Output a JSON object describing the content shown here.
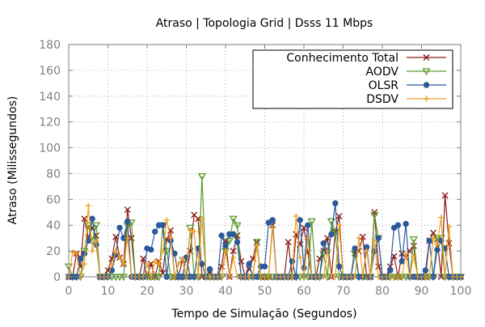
{
  "chart_data": {
    "type": "line",
    "title": "Atraso | Topologia Grid | Dsss 11 Mbps",
    "xlabel": "Tempo de Simulação (Segundos)",
    "ylabel": "Atraso (Milissegundos)",
    "xlim": [
      0,
      100
    ],
    "ylim": [
      0,
      180
    ],
    "x_ticks": [
      0,
      10,
      20,
      30,
      40,
      50,
      60,
      70,
      80,
      90,
      100
    ],
    "y_ticks": [
      0,
      20,
      40,
      60,
      80,
      100,
      120,
      140,
      160,
      180
    ],
    "grid": true,
    "legend_position": "top-right",
    "series": [
      {
        "name": "Conhecimento Total",
        "color": "#8b1a1a",
        "marker": "x",
        "x": [
          0,
          1,
          2,
          3,
          4,
          5,
          6,
          7,
          8,
          9,
          10,
          11,
          12,
          13,
          14,
          15,
          16,
          17,
          18,
          19,
          20,
          21,
          22,
          23,
          24,
          25,
          26,
          27,
          28,
          29,
          30,
          31,
          32,
          33,
          34,
          35,
          36,
          37,
          38,
          39,
          40,
          41,
          42,
          43,
          44,
          45,
          46,
          47,
          48,
          49,
          50,
          51,
          52,
          53,
          54,
          55,
          56,
          57,
          58,
          59,
          60,
          61,
          62,
          63,
          64,
          65,
          66,
          67,
          68,
          69,
          70,
          71,
          72,
          73,
          74,
          75,
          76,
          77,
          78,
          79,
          80,
          81,
          82,
          83,
          84,
          85,
          86,
          87,
          88,
          89,
          90,
          91,
          92,
          93,
          94,
          95,
          96,
          97,
          98,
          99,
          100
        ],
        "y": [
          0,
          0,
          18,
          8,
          45,
          30,
          38,
          32,
          0,
          0,
          5,
          14,
          31,
          15,
          10,
          52,
          30,
          0,
          0,
          14,
          0,
          10,
          0,
          12,
          3,
          29,
          36,
          0,
          0,
          13,
          0,
          20,
          48,
          45,
          0,
          0,
          3,
          0,
          0,
          8,
          28,
          0,
          20,
          32,
          12,
          0,
          6,
          14,
          27,
          0,
          0,
          0,
          40,
          0,
          0,
          0,
          27,
          0,
          33,
          25,
          38,
          19,
          0,
          0,
          14,
          20,
          30,
          0,
          35,
          47,
          0,
          0,
          0,
          18,
          20,
          31,
          0,
          0,
          50,
          8,
          0,
          0,
          8,
          16,
          0,
          18,
          15,
          20,
          24,
          0,
          0,
          0,
          28,
          34,
          29,
          0,
          63,
          26,
          0,
          0,
          0
        ]
      },
      {
        "name": "AODV",
        "color": "#5a9a2a",
        "marker": "triangle-down",
        "x": [
          0,
          1,
          2,
          3,
          4,
          5,
          6,
          7,
          8,
          9,
          10,
          11,
          12,
          13,
          14,
          15,
          16,
          17,
          18,
          19,
          20,
          21,
          22,
          23,
          24,
          25,
          26,
          27,
          28,
          29,
          30,
          31,
          32,
          33,
          34,
          35,
          36,
          37,
          38,
          39,
          40,
          41,
          42,
          43,
          44,
          45,
          46,
          47,
          48,
          49,
          50,
          51,
          52,
          53,
          54,
          55,
          56,
          57,
          58,
          59,
          60,
          61,
          62,
          63,
          64,
          65,
          66,
          67,
          68,
          69,
          70,
          71,
          72,
          73,
          74,
          75,
          76,
          77,
          78,
          79,
          80,
          81,
          82,
          83,
          84,
          85,
          86,
          87,
          88,
          89,
          90,
          91,
          92,
          93,
          94,
          95,
          96,
          97,
          98,
          99,
          100
        ],
        "y": [
          8,
          0,
          0,
          0,
          20,
          40,
          28,
          40,
          0,
          0,
          0,
          0,
          0,
          0,
          0,
          40,
          42,
          0,
          0,
          0,
          0,
          0,
          0,
          0,
          40,
          20,
          0,
          0,
          0,
          0,
          0,
          38,
          0,
          0,
          78,
          0,
          0,
          0,
          0,
          0,
          20,
          28,
          45,
          40,
          0,
          0,
          0,
          0,
          27,
          0,
          0,
          0,
          0,
          0,
          0,
          0,
          0,
          0,
          0,
          0,
          0,
          0,
          43,
          0,
          0,
          18,
          0,
          43,
          35,
          0,
          0,
          0,
          0,
          18,
          0,
          0,
          0,
          0,
          48,
          30,
          0,
          0,
          0,
          0,
          0,
          0,
          0,
          0,
          29,
          0,
          0,
          0,
          0,
          0,
          30,
          30,
          0,
          0,
          0,
          0,
          0
        ]
      },
      {
        "name": "OLSR",
        "color": "#2a5a9a",
        "marker": "circle",
        "x": [
          0,
          1,
          2,
          3,
          4,
          5,
          6,
          7,
          8,
          9,
          10,
          11,
          12,
          13,
          14,
          15,
          16,
          17,
          18,
          19,
          20,
          21,
          22,
          23,
          24,
          25,
          26,
          27,
          28,
          29,
          30,
          31,
          32,
          33,
          34,
          35,
          36,
          37,
          38,
          39,
          40,
          41,
          42,
          43,
          44,
          45,
          46,
          47,
          48,
          49,
          50,
          51,
          52,
          53,
          54,
          55,
          56,
          57,
          58,
          59,
          60,
          61,
          62,
          63,
          64,
          65,
          66,
          67,
          68,
          69,
          70,
          71,
          72,
          73,
          74,
          75,
          76,
          77,
          78,
          79,
          80,
          81,
          82,
          83,
          84,
          85,
          86,
          87,
          88,
          89,
          90,
          91,
          92,
          93,
          94,
          95,
          96,
          97,
          98,
          99,
          100
        ],
        "y": [
          0,
          0,
          0,
          14,
          18,
          28,
          45,
          25,
          0,
          0,
          0,
          5,
          17,
          38,
          30,
          43,
          0,
          0,
          0,
          0,
          22,
          21,
          35,
          40,
          40,
          0,
          28,
          18,
          0,
          0,
          15,
          0,
          0,
          22,
          10,
          0,
          6,
          0,
          0,
          32,
          24,
          33,
          33,
          27,
          0,
          0,
          10,
          0,
          0,
          8,
          8,
          42,
          44,
          0,
          0,
          0,
          0,
          12,
          0,
          44,
          7,
          40,
          0,
          0,
          0,
          26,
          20,
          33,
          57,
          8,
          0,
          0,
          0,
          22,
          0,
          0,
          23,
          0,
          20,
          30,
          0,
          0,
          5,
          38,
          40,
          12,
          41,
          0,
          0,
          0,
          0,
          5,
          28,
          0,
          21,
          28,
          22,
          0,
          0,
          0,
          0
        ]
      },
      {
        "name": "DSDV",
        "color": "#f0a020",
        "marker": "plus",
        "x": [
          0,
          1,
          2,
          3,
          4,
          5,
          6,
          7,
          8,
          9,
          10,
          11,
          12,
          13,
          14,
          15,
          16,
          17,
          18,
          19,
          20,
          21,
          22,
          23,
          24,
          25,
          26,
          27,
          28,
          29,
          30,
          31,
          32,
          33,
          34,
          35,
          36,
          37,
          38,
          39,
          40,
          41,
          42,
          43,
          44,
          45,
          46,
          47,
          48,
          49,
          50,
          51,
          52,
          53,
          54,
          55,
          56,
          57,
          58,
          59,
          60,
          61,
          62,
          63,
          64,
          65,
          66,
          67,
          68,
          69,
          70,
          71,
          72,
          73,
          74,
          75,
          76,
          77,
          78,
          79,
          80,
          81,
          82,
          83,
          84,
          85,
          86,
          87,
          88,
          89,
          90,
          91,
          92,
          93,
          94,
          95,
          96,
          97,
          98,
          99,
          100
        ],
        "y": [
          0,
          19,
          18,
          0,
          10,
          55,
          20,
          28,
          0,
          0,
          0,
          10,
          20,
          15,
          10,
          30,
          0,
          0,
          0,
          0,
          10,
          0,
          12,
          10,
          20,
          44,
          30,
          0,
          10,
          14,
          0,
          36,
          35,
          0,
          45,
          0,
          0,
          0,
          0,
          0,
          20,
          0,
          15,
          0,
          0,
          0,
          0,
          0,
          24,
          0,
          0,
          0,
          38,
          0,
          0,
          0,
          0,
          0,
          47,
          15,
          0,
          30,
          0,
          0,
          0,
          0,
          20,
          0,
          0,
          40,
          0,
          0,
          0,
          0,
          30,
          0,
          20,
          0,
          28,
          0,
          0,
          0,
          0,
          0,
          0,
          0,
          18,
          0,
          16,
          0,
          0,
          0,
          0,
          30,
          25,
          46,
          0,
          39,
          0,
          0,
          0
        ]
      }
    ]
  }
}
